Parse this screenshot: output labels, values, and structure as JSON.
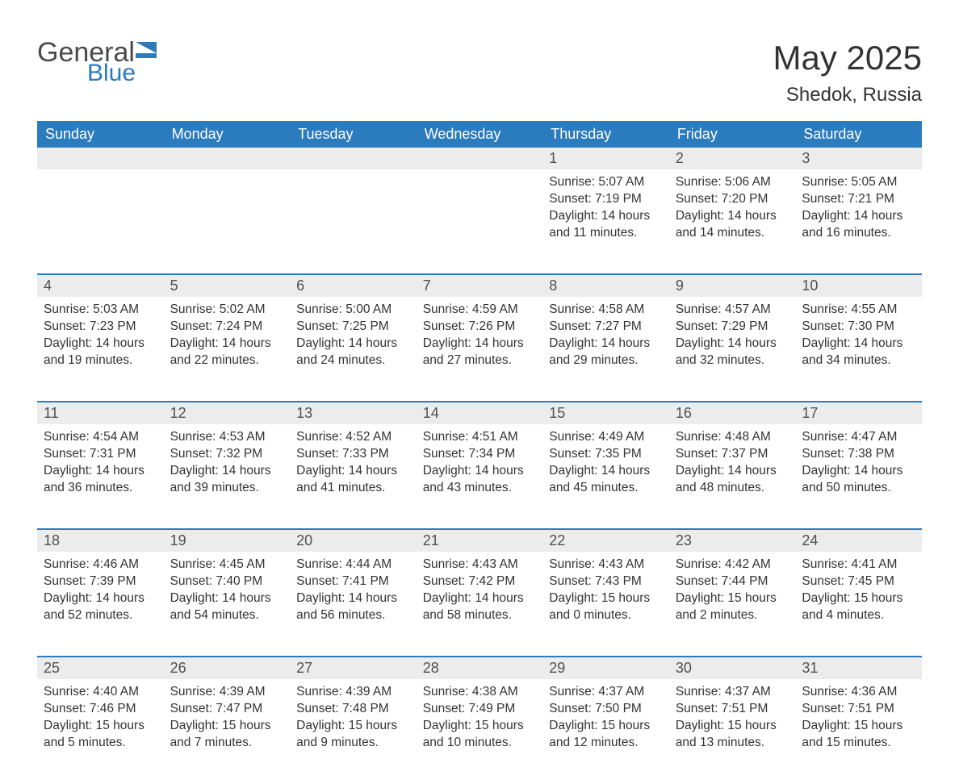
{
  "logo": {
    "general": "General",
    "blue": "Blue"
  },
  "title": "May 2025",
  "location": "Shedok, Russia",
  "colors": {
    "header_bg": "#2b7bbf",
    "header_text": "#ffffff",
    "daynum_bg": "#ececec",
    "daynum_text": "#505050",
    "body_text": "#333333",
    "logo_gray": "#4a4a4a",
    "logo_blue": "#2b7bbf",
    "page_bg": "#ffffff"
  },
  "weekdays": [
    "Sunday",
    "Monday",
    "Tuesday",
    "Wednesday",
    "Thursday",
    "Friday",
    "Saturday"
  ],
  "weeks": [
    {
      "nums": [
        "",
        "",
        "",
        "",
        "1",
        "2",
        "3"
      ],
      "cells": [
        null,
        null,
        null,
        null,
        {
          "sunrise": "Sunrise: 5:07 AM",
          "sunset": "Sunset: 7:19 PM",
          "day1": "Daylight: 14 hours",
          "day2": "and 11 minutes."
        },
        {
          "sunrise": "Sunrise: 5:06 AM",
          "sunset": "Sunset: 7:20 PM",
          "day1": "Daylight: 14 hours",
          "day2": "and 14 minutes."
        },
        {
          "sunrise": "Sunrise: 5:05 AM",
          "sunset": "Sunset: 7:21 PM",
          "day1": "Daylight: 14 hours",
          "day2": "and 16 minutes."
        }
      ]
    },
    {
      "nums": [
        "4",
        "5",
        "6",
        "7",
        "8",
        "9",
        "10"
      ],
      "cells": [
        {
          "sunrise": "Sunrise: 5:03 AM",
          "sunset": "Sunset: 7:23 PM",
          "day1": "Daylight: 14 hours",
          "day2": "and 19 minutes."
        },
        {
          "sunrise": "Sunrise: 5:02 AM",
          "sunset": "Sunset: 7:24 PM",
          "day1": "Daylight: 14 hours",
          "day2": "and 22 minutes."
        },
        {
          "sunrise": "Sunrise: 5:00 AM",
          "sunset": "Sunset: 7:25 PM",
          "day1": "Daylight: 14 hours",
          "day2": "and 24 minutes."
        },
        {
          "sunrise": "Sunrise: 4:59 AM",
          "sunset": "Sunset: 7:26 PM",
          "day1": "Daylight: 14 hours",
          "day2": "and 27 minutes."
        },
        {
          "sunrise": "Sunrise: 4:58 AM",
          "sunset": "Sunset: 7:27 PM",
          "day1": "Daylight: 14 hours",
          "day2": "and 29 minutes."
        },
        {
          "sunrise": "Sunrise: 4:57 AM",
          "sunset": "Sunset: 7:29 PM",
          "day1": "Daylight: 14 hours",
          "day2": "and 32 minutes."
        },
        {
          "sunrise": "Sunrise: 4:55 AM",
          "sunset": "Sunset: 7:30 PM",
          "day1": "Daylight: 14 hours",
          "day2": "and 34 minutes."
        }
      ]
    },
    {
      "nums": [
        "11",
        "12",
        "13",
        "14",
        "15",
        "16",
        "17"
      ],
      "cells": [
        {
          "sunrise": "Sunrise: 4:54 AM",
          "sunset": "Sunset: 7:31 PM",
          "day1": "Daylight: 14 hours",
          "day2": "and 36 minutes."
        },
        {
          "sunrise": "Sunrise: 4:53 AM",
          "sunset": "Sunset: 7:32 PM",
          "day1": "Daylight: 14 hours",
          "day2": "and 39 minutes."
        },
        {
          "sunrise": "Sunrise: 4:52 AM",
          "sunset": "Sunset: 7:33 PM",
          "day1": "Daylight: 14 hours",
          "day2": "and 41 minutes."
        },
        {
          "sunrise": "Sunrise: 4:51 AM",
          "sunset": "Sunset: 7:34 PM",
          "day1": "Daylight: 14 hours",
          "day2": "and 43 minutes."
        },
        {
          "sunrise": "Sunrise: 4:49 AM",
          "sunset": "Sunset: 7:35 PM",
          "day1": "Daylight: 14 hours",
          "day2": "and 45 minutes."
        },
        {
          "sunrise": "Sunrise: 4:48 AM",
          "sunset": "Sunset: 7:37 PM",
          "day1": "Daylight: 14 hours",
          "day2": "and 48 minutes."
        },
        {
          "sunrise": "Sunrise: 4:47 AM",
          "sunset": "Sunset: 7:38 PM",
          "day1": "Daylight: 14 hours",
          "day2": "and 50 minutes."
        }
      ]
    },
    {
      "nums": [
        "18",
        "19",
        "20",
        "21",
        "22",
        "23",
        "24"
      ],
      "cells": [
        {
          "sunrise": "Sunrise: 4:46 AM",
          "sunset": "Sunset: 7:39 PM",
          "day1": "Daylight: 14 hours",
          "day2": "and 52 minutes."
        },
        {
          "sunrise": "Sunrise: 4:45 AM",
          "sunset": "Sunset: 7:40 PM",
          "day1": "Daylight: 14 hours",
          "day2": "and 54 minutes."
        },
        {
          "sunrise": "Sunrise: 4:44 AM",
          "sunset": "Sunset: 7:41 PM",
          "day1": "Daylight: 14 hours",
          "day2": "and 56 minutes."
        },
        {
          "sunrise": "Sunrise: 4:43 AM",
          "sunset": "Sunset: 7:42 PM",
          "day1": "Daylight: 14 hours",
          "day2": "and 58 minutes."
        },
        {
          "sunrise": "Sunrise: 4:43 AM",
          "sunset": "Sunset: 7:43 PM",
          "day1": "Daylight: 15 hours",
          "day2": "and 0 minutes."
        },
        {
          "sunrise": "Sunrise: 4:42 AM",
          "sunset": "Sunset: 7:44 PM",
          "day1": "Daylight: 15 hours",
          "day2": "and 2 minutes."
        },
        {
          "sunrise": "Sunrise: 4:41 AM",
          "sunset": "Sunset: 7:45 PM",
          "day1": "Daylight: 15 hours",
          "day2": "and 4 minutes."
        }
      ]
    },
    {
      "nums": [
        "25",
        "26",
        "27",
        "28",
        "29",
        "30",
        "31"
      ],
      "cells": [
        {
          "sunrise": "Sunrise: 4:40 AM",
          "sunset": "Sunset: 7:46 PM",
          "day1": "Daylight: 15 hours",
          "day2": "and 5 minutes."
        },
        {
          "sunrise": "Sunrise: 4:39 AM",
          "sunset": "Sunset: 7:47 PM",
          "day1": "Daylight: 15 hours",
          "day2": "and 7 minutes."
        },
        {
          "sunrise": "Sunrise: 4:39 AM",
          "sunset": "Sunset: 7:48 PM",
          "day1": "Daylight: 15 hours",
          "day2": "and 9 minutes."
        },
        {
          "sunrise": "Sunrise: 4:38 AM",
          "sunset": "Sunset: 7:49 PM",
          "day1": "Daylight: 15 hours",
          "day2": "and 10 minutes."
        },
        {
          "sunrise": "Sunrise: 4:37 AM",
          "sunset": "Sunset: 7:50 PM",
          "day1": "Daylight: 15 hours",
          "day2": "and 12 minutes."
        },
        {
          "sunrise": "Sunrise: 4:37 AM",
          "sunset": "Sunset: 7:51 PM",
          "day1": "Daylight: 15 hours",
          "day2": "and 13 minutes."
        },
        {
          "sunrise": "Sunrise: 4:36 AM",
          "sunset": "Sunset: 7:51 PM",
          "day1": "Daylight: 15 hours",
          "day2": "and 15 minutes."
        }
      ]
    }
  ]
}
